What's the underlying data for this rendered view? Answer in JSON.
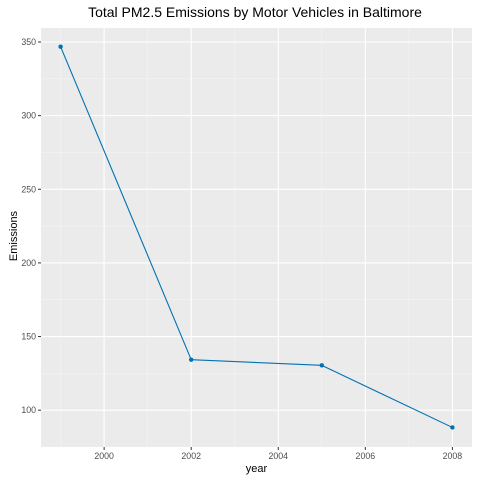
{
  "chart_data": {
    "type": "line",
    "title": "Total PM2.5 Emissions by Motor Vehicles in Baltimore",
    "xlabel": "year",
    "ylabel": "Emissions",
    "x": [
      1999,
      2002,
      2005,
      2008
    ],
    "y": [
      346.82,
      134.31,
      130.43,
      88.28
    ],
    "xlim": [
      1998.55,
      2008.45
    ],
    "ylim": [
      75.0,
      359.5
    ],
    "xticks": [
      2000,
      2002,
      2004,
      2006,
      2008
    ],
    "xtick_labels": [
      "2000",
      "2002",
      "2004",
      "2006",
      "2008"
    ],
    "yticks": [
      100,
      150,
      200,
      250,
      300,
      350
    ],
    "ytick_labels": [
      "100",
      "150",
      "200",
      "250",
      "300",
      "350"
    ],
    "grid": true,
    "legend": "none",
    "colors": {
      "line": "#0072B2",
      "panel": "#EBEBEB",
      "grid_major": "#FFFFFF",
      "grid_minor": "#F5F5F5"
    }
  }
}
